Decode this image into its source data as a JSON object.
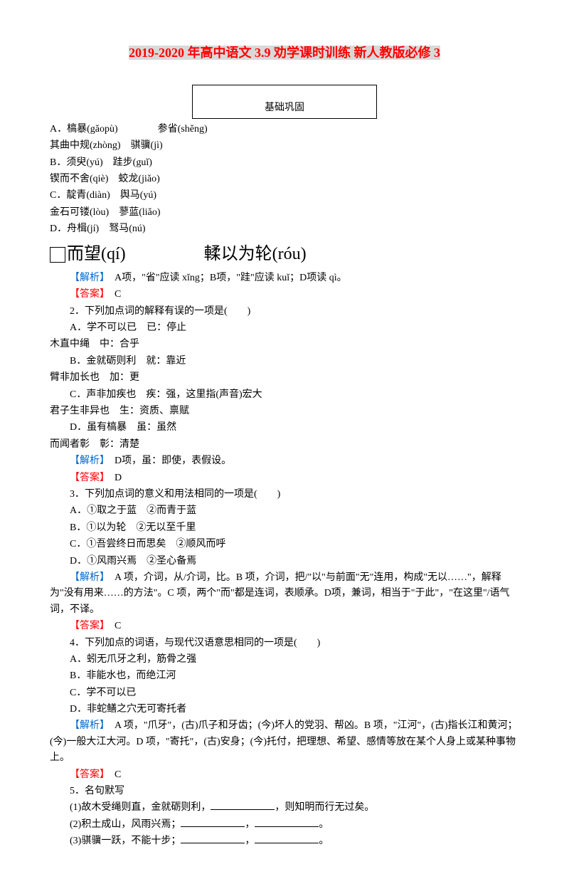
{
  "title": {
    "part1": "2019-2020 年高中语文 3.9 劝学课时训练 新人教版必修 3"
  },
  "section1": {
    "label": "基础巩固"
  },
  "q1": {
    "optA": "A．槁暴(gǎopù)　　　　参省(shěng)",
    "optA2": "其曲中规(zhòng)　骐骥(jì)",
    "optB": "B．须臾(yú)　跬步(guǐ)",
    "optB2": "锲而不舍(qiè)　蛟龙(jiǎo)",
    "optC": "C．靛青(diàn)　舆马(yú)",
    "optC2": "金石可镂(lòu)　蓼蓝(liǎo)",
    "optD": "D．舟楫(jí)　驽马(nú)",
    "bigLeft": "而望(qí)",
    "bigRight": "輮以为轮(róu)",
    "analysisLabel": "【解析】",
    "analysis": "　A项，\"省\"应读 xǐng；B项，\"跬\"应读 kuǐ；D项读 qì。",
    "answerLabel": "【答案】",
    "answer": "　C"
  },
  "q2": {
    "stem": "2．下列加点词的解释有误的一项是(　　)",
    "a1": "A．学不可以已　已：停止",
    "a2": "木直中绳　中：合乎",
    "b1": "B．金就砺则利　就：靠近",
    "b2": "臂非加长也　加：更",
    "c1": "C．声非加疾也　疾：强，这里指(声音)宏大",
    "c2": "君子生非异也　生：资质、禀赋",
    "d1": "D．虽有槁暴　虽：虽然",
    "d2": "而闻者彰　彰：清楚",
    "analysisLabel": "【解析】",
    "analysis": "　D项，虽：即使，表假设。",
    "answerLabel": "【答案】",
    "answer": "　D"
  },
  "q3": {
    "stem": "3．下列加点词的意义和用法相同的一项是(　　)",
    "a": "A．①取之于蓝　②而青于蓝",
    "b": "B．①以为轮　②无以至千里",
    "c": "C．①吾尝终日而思矣　②顺风而呼",
    "d": "D．①风雨兴焉　②圣心备焉",
    "analysisLabel": "【解析】",
    "analysis": "　A 项，介词，从/介词，比。B 项，介词，把/\"以\"与前面\"无\"连用，构成\"无以……\"，解释为\"没有用来……的方法\"。C 项，两个\"而\"都是连词，表顺承。D项，兼词，相当于\"于此\"，\"在这里\"/语气词，不译。",
    "answerLabel": "【答案】",
    "answer": "　C"
  },
  "q4": {
    "stem": "4．下列加点的词语，与现代汉语意思相同的一项是(　　)",
    "a": "A．蚓无爪牙之利，筋骨之强",
    "b": "B．非能水也，而绝江河",
    "c": "C．学不可以已",
    "d": "D．非蛇鳝之穴无可寄托者",
    "analysisLabel": "【解析】",
    "analysis": "　A 项，\"爪牙\"，(古)爪子和牙齿；(今)坏人的党羽、帮凶。B 项，\"江河\"，(古)指长江和黄河；(今)一般大江大河。D 项，\"寄托\"，(古)安身；(今)托付，把理想、希望、感情等放在某个人身上或某种事物上。",
    "answerLabel": "【答案】",
    "answer": "　C"
  },
  "q5": {
    "stem": "5．名句默写",
    "l1a": "(1)故木受绳则直，金就砺则利，",
    "l1b": "，则知明而行无过矣。",
    "l2a": "(2)积土成山，风雨兴焉；",
    "l2b": "，",
    "l2c": "。",
    "l3a": "(3)骐骥一跃，不能十步；",
    "l3b": "，",
    "l3c": "。"
  }
}
